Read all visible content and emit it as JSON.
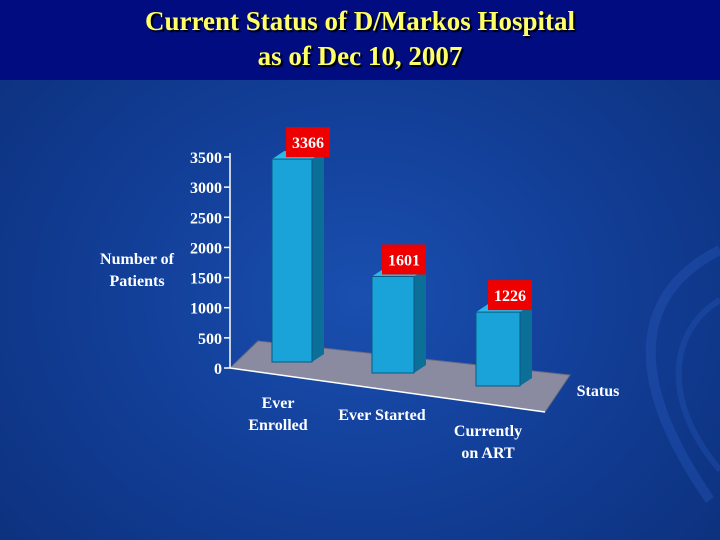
{
  "slide": {
    "title_line1": "Current Status of D/Markos Hospital",
    "title_line2": "as of Dec 10, 2007"
  },
  "chart_data": {
    "type": "bar",
    "categories": [
      "Ever Enrolled",
      "Ever Started",
      "Currently on ART"
    ],
    "category_lines": [
      [
        "Ever",
        "Enrolled"
      ],
      [
        "Ever Started"
      ],
      [
        "Currently",
        "on ART"
      ]
    ],
    "values": [
      3366,
      1601,
      1226
    ],
    "data_labels": [
      "3366",
      "1601",
      "1226"
    ],
    "ylabel_lines": [
      "Number of",
      "Patients"
    ],
    "xlabel": "Status",
    "yticks": [
      0,
      500,
      1000,
      1500,
      2000,
      2500,
      3000,
      3500
    ],
    "ylim": [
      0,
      3500
    ],
    "colors": {
      "bar_front": "#1aa3d8",
      "bar_side": "#0b6f98",
      "bar_top": "#2cb9e8",
      "floor": "#8a8aa0",
      "label_bg": "#ee0000",
      "text": "#ffffff",
      "title": "#ffff66"
    }
  }
}
